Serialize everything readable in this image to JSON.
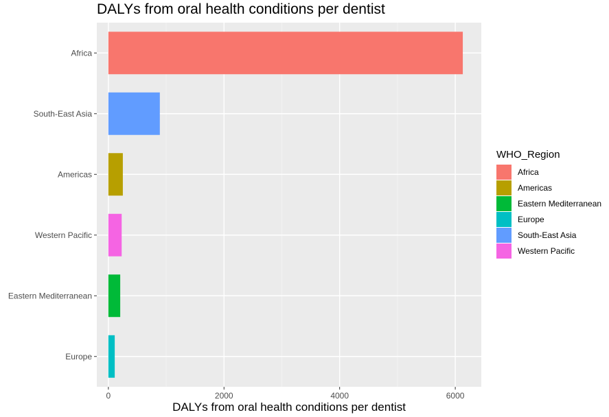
{
  "chart_data": {
    "type": "bar",
    "orientation": "horizontal",
    "title": "DALYs from oral health conditions per dentist",
    "xlabel": "DALYs from oral health conditions per dentist",
    "ylabel": "",
    "categories": [
      "Africa",
      "South-East Asia",
      "Americas",
      "Western Pacific",
      "Eastern Mediterranean",
      "Europe"
    ],
    "values": [
      6130,
      890,
      250,
      230,
      205,
      110
    ],
    "bar_colors": [
      "#F8766D",
      "#619CFF",
      "#B79F00",
      "#F564E3",
      "#00BA38",
      "#00BFC4"
    ],
    "xlim": [
      -200,
      6450
    ],
    "xticks": [
      0,
      2000,
      4000,
      6000
    ],
    "xtick_labels": [
      "0",
      "2000",
      "4000",
      "6000"
    ],
    "grid": true,
    "legend": {
      "title": "WHO_Region",
      "placement": "right",
      "entries": [
        {
          "label": "Africa",
          "color": "#F8766D"
        },
        {
          "label": "Americas",
          "color": "#B79F00"
        },
        {
          "label": "Eastern Mediterranean",
          "color": "#00BA38"
        },
        {
          "label": "Europe",
          "color": "#00BFC4"
        },
        {
          "label": "South-East Asia",
          "color": "#619CFF"
        },
        {
          "label": "Western Pacific",
          "color": "#F564E3"
        }
      ]
    }
  }
}
